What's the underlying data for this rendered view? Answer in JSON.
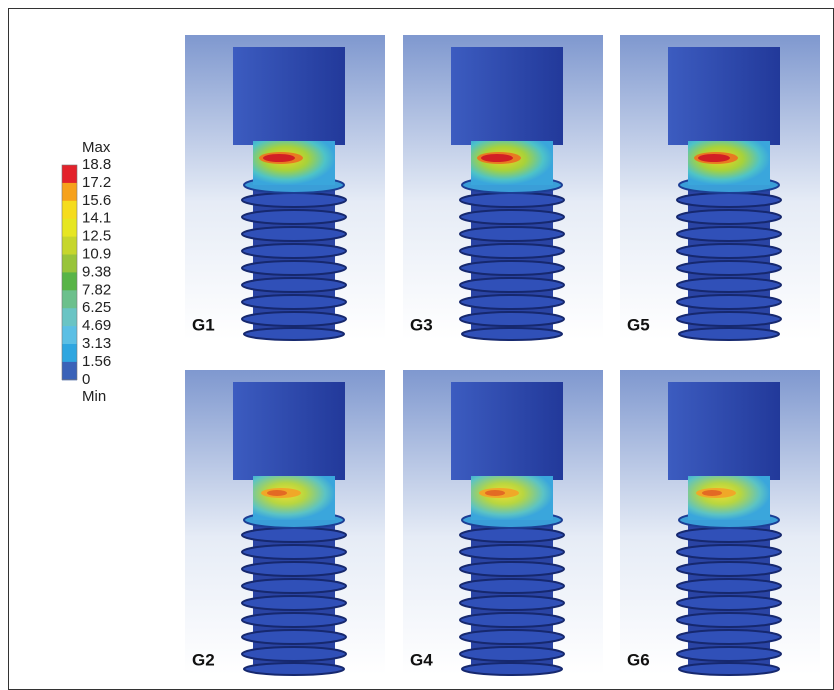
{
  "legend": {
    "max_label": "Max",
    "min_label": "Min",
    "ticks": [
      "18.8",
      "17.2",
      "15.6",
      "14.1",
      "12.5",
      "10.9",
      "9.38",
      "7.82",
      "6.25",
      "4.69",
      "3.13",
      "1.56",
      "0"
    ],
    "colors": [
      "#e3222b",
      "#f6a11c",
      "#f5dc1d",
      "#e6e622",
      "#c6d62c",
      "#98c43a",
      "#58b447",
      "#6cc08c",
      "#6ac4c4",
      "#5cbfe4",
      "#2fa6e0",
      "#3a62b8"
    ]
  },
  "panels": [
    {
      "label": "G1"
    },
    {
      "label": "G3"
    },
    {
      "label": "G5"
    },
    {
      "label": "G2"
    },
    {
      "label": "G4"
    },
    {
      "label": "G6"
    }
  ]
}
